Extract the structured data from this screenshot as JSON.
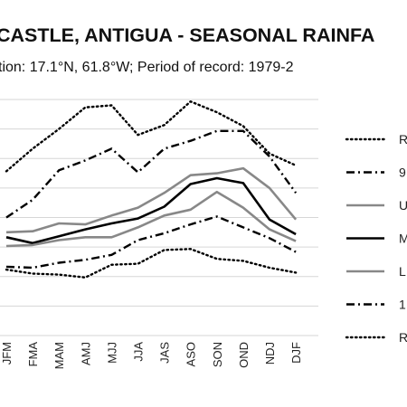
{
  "chart_data": {
    "type": "line",
    "title": "CASTLE, ANTIGUA - SEASONAL RAINFA",
    "subtitle": "tion: 17.1°N, 61.8°W; Period of record: 1979-2",
    "xlabel": "",
    "ylabel": "",
    "categories": [
      "JFM",
      "FMA",
      "MAM",
      "AMJ",
      "MJJ",
      "JJA",
      "JAS",
      "ASO",
      "SON",
      "OND",
      "NDJ",
      "DJF"
    ],
    "y_ticks_visible": false,
    "ylim": [
      0,
      240
    ],
    "grid": true,
    "legend_position": "right",
    "series": [
      {
        "name": "R",
        "style": "dotted",
        "color": "#000000",
        "values": [
          167,
          190,
          210,
          232,
          234,
          204,
          214,
          238,
          227,
          213,
          185,
          173
        ]
      },
      {
        "name": "9",
        "style": "dashdot",
        "color": "#000000",
        "values": [
          120,
          138,
          168,
          178,
          190,
          166,
          190,
          198,
          208,
          208,
          182,
          145
        ]
      },
      {
        "name": "U",
        "style": "solid",
        "color": "#888888",
        "values": [
          105,
          106,
          114,
          113,
          122,
          130,
          145,
          163,
          165,
          170,
          150,
          118
        ]
      },
      {
        "name": "M",
        "style": "solid",
        "color": "#000000",
        "values": [
          100,
          94,
          101,
          108,
          114,
          119,
          131,
          154,
          160,
          155,
          118,
          103
        ]
      },
      {
        "name": "L",
        "style": "solid",
        "color": "#888888",
        "values": [
          91,
          92,
          97,
          100,
          100,
          110,
          122,
          128,
          146,
          130,
          108,
          96
        ]
      },
      {
        "name": "1",
        "style": "dashdot",
        "color": "#000000",
        "values": [
          70,
          69,
          74,
          77,
          82,
          97,
          104,
          113,
          121,
          110,
          99,
          85
        ]
      },
      {
        "name": "R",
        "style": "dotted",
        "color": "#000000",
        "values": [
          67,
          63,
          62,
          59,
          72,
          73,
          87,
          88,
          78,
          76,
          69,
          64
        ]
      }
    ]
  }
}
